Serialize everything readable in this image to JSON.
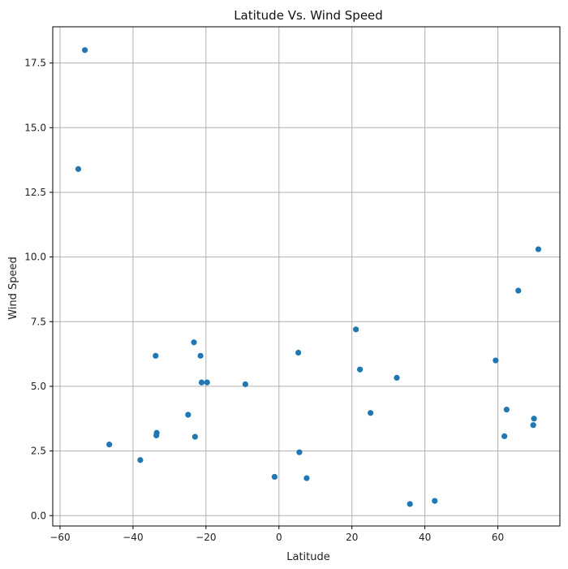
{
  "chart_data": {
    "type": "scatter",
    "title": "Latitude Vs. Wind Speed",
    "xlabel": "Latitude",
    "ylabel": "Wind Speed",
    "xlim": [
      -62,
      77
    ],
    "ylim": [
      -0.4,
      18.9
    ],
    "xticks": [
      -60,
      -40,
      -20,
      0,
      20,
      40,
      60
    ],
    "yticks": [
      0.0,
      2.5,
      5.0,
      7.5,
      10.0,
      12.5,
      15.0,
      17.5
    ],
    "xtick_labels": [
      "−60",
      "−40",
      "−20",
      "0",
      "20",
      "40",
      "60"
    ],
    "ytick_labels": [
      "0.0",
      "2.5",
      "5.0",
      "7.5",
      "10.0",
      "12.5",
      "15.0",
      "17.5"
    ],
    "grid": true,
    "marker_color": "#1f77b4",
    "points": [
      {
        "x": -53.2,
        "y": 18.0
      },
      {
        "x": -55.0,
        "y": 13.4
      },
      {
        "x": -46.5,
        "y": 2.75
      },
      {
        "x": -38.0,
        "y": 2.15
      },
      {
        "x": -33.8,
        "y": 6.18
      },
      {
        "x": -33.5,
        "y": 3.2
      },
      {
        "x": -33.6,
        "y": 3.1
      },
      {
        "x": -24.9,
        "y": 3.9
      },
      {
        "x": -23.3,
        "y": 6.7
      },
      {
        "x": -23.0,
        "y": 3.05
      },
      {
        "x": -21.5,
        "y": 6.18
      },
      {
        "x": -21.2,
        "y": 5.15
      },
      {
        "x": -19.7,
        "y": 5.15
      },
      {
        "x": -9.2,
        "y": 5.08
      },
      {
        "x": -1.2,
        "y": 1.5
      },
      {
        "x": 5.3,
        "y": 6.3
      },
      {
        "x": 5.6,
        "y": 2.45
      },
      {
        "x": 7.6,
        "y": 1.45
      },
      {
        "x": 21.1,
        "y": 7.2
      },
      {
        "x": 22.2,
        "y": 5.65
      },
      {
        "x": 25.1,
        "y": 3.97
      },
      {
        "x": 32.3,
        "y": 5.33
      },
      {
        "x": 35.9,
        "y": 0.45
      },
      {
        "x": 42.7,
        "y": 0.57
      },
      {
        "x": 59.4,
        "y": 6.0
      },
      {
        "x": 61.8,
        "y": 3.07
      },
      {
        "x": 62.4,
        "y": 4.1
      },
      {
        "x": 65.6,
        "y": 8.7
      },
      {
        "x": 69.7,
        "y": 3.5
      },
      {
        "x": 69.9,
        "y": 3.75
      },
      {
        "x": 71.1,
        "y": 10.3
      }
    ]
  }
}
